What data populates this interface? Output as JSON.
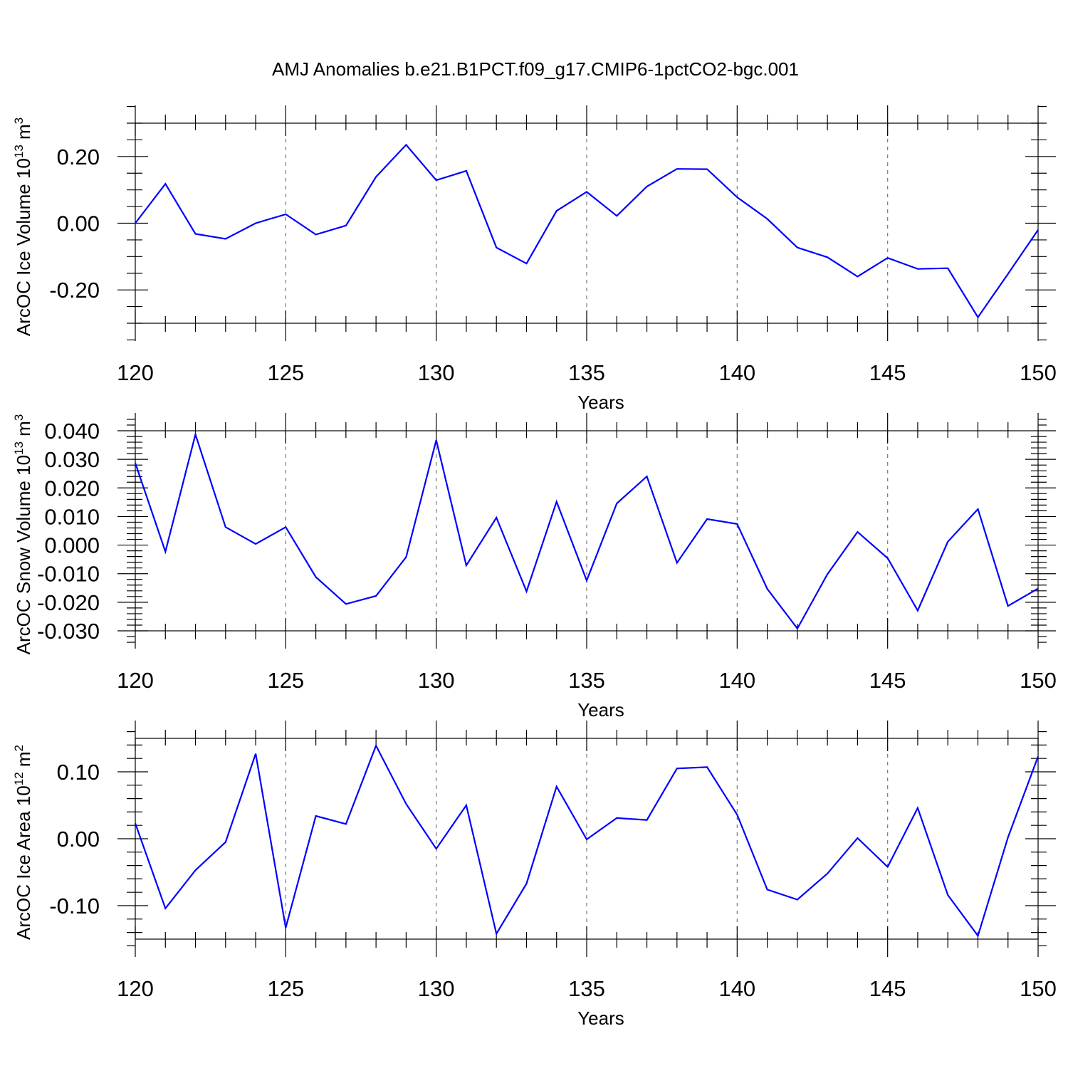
{
  "title": "AMJ Anomalies b.e21.B1PCT.f09_g17.CMIP6-1pctCO2-bgc.001",
  "colors": {
    "line": "#0000ff",
    "frame": "#000000",
    "grid": "#777777"
  },
  "chart_data": [
    {
      "type": "line",
      "ylabel": "ArcOC Ice Volume 10",
      "ylabel_exp": "13",
      "ylabel_unit": " m",
      "ylabel_unit_exp": "3",
      "xlabel": "Years",
      "xlim": [
        120,
        150
      ],
      "ylim": [
        -0.3,
        0.3
      ],
      "x_major_ticks": [
        120,
        125,
        130,
        135,
        140,
        145,
        150
      ],
      "x_tick_labels": [
        "120",
        "125",
        "130",
        "135",
        "140",
        "145",
        "150"
      ],
      "y_major_ticks": [
        -0.2,
        0.0,
        0.2
      ],
      "y_tick_labels": [
        "-0.20",
        "0.00",
        "0.20"
      ],
      "y_minor_step": 0.05,
      "grid_x": true,
      "x": [
        120,
        121,
        122,
        123,
        124,
        125,
        126,
        127,
        128,
        129,
        130,
        131,
        132,
        133,
        134,
        135,
        136,
        137,
        138,
        139,
        140,
        141,
        142,
        143,
        144,
        145,
        146,
        147,
        148,
        149,
        150
      ],
      "values": [
        0.0,
        0.118,
        -0.032,
        -0.047,
        0.0,
        0.027,
        -0.034,
        -0.007,
        0.139,
        0.235,
        0.129,
        0.157,
        -0.073,
        -0.121,
        0.037,
        0.094,
        0.022,
        0.11,
        0.163,
        0.162,
        0.078,
        0.013,
        -0.073,
        -0.102,
        -0.16,
        -0.104,
        -0.137,
        -0.135,
        -0.282,
        -0.152,
        -0.02
      ]
    },
    {
      "type": "line",
      "ylabel": "ArcOC Snow Volume 10",
      "ylabel_exp": "13",
      "ylabel_unit": " m",
      "ylabel_unit_exp": "3",
      "xlabel": "Years",
      "xlim": [
        120,
        150
      ],
      "ylim": [
        -0.03,
        0.04
      ],
      "x_major_ticks": [
        120,
        125,
        130,
        135,
        140,
        145,
        150
      ],
      "x_tick_labels": [
        "120",
        "125",
        "130",
        "135",
        "140",
        "145",
        "150"
      ],
      "y_major_ticks": [
        -0.03,
        -0.02,
        -0.01,
        0.0,
        0.01,
        0.02,
        0.03,
        0.04
      ],
      "y_tick_labels": [
        "-0.030",
        "-0.020",
        "-0.010",
        "0.000",
        "0.010",
        "0.020",
        "0.030",
        "0.040"
      ],
      "y_minor_step": 0.002,
      "grid_x": true,
      "x": [
        120,
        121,
        122,
        123,
        124,
        125,
        126,
        127,
        128,
        129,
        130,
        131,
        132,
        133,
        134,
        135,
        136,
        137,
        138,
        139,
        140,
        141,
        142,
        143,
        144,
        145,
        146,
        147,
        148,
        149,
        150
      ],
      "values": [
        0.0287,
        -0.0023,
        0.0387,
        0.0063,
        0.0004,
        0.0063,
        -0.0112,
        -0.0206,
        -0.0178,
        -0.0042,
        0.0367,
        -0.0071,
        0.0096,
        -0.0162,
        0.0152,
        -0.0124,
        0.0146,
        0.024,
        -0.0062,
        0.0091,
        0.0074,
        -0.0153,
        -0.0292,
        -0.0102,
        0.0046,
        -0.0046,
        -0.0229,
        0.0012,
        0.0126,
        -0.0213,
        -0.0152
      ]
    },
    {
      "type": "line",
      "ylabel": "ArcOC Ice Area 10",
      "ylabel_exp": "12",
      "ylabel_unit": " m",
      "ylabel_unit_exp": "2",
      "xlabel": "Years",
      "xlim": [
        120,
        150
      ],
      "ylim": [
        -0.15,
        0.15
      ],
      "x_major_ticks": [
        120,
        125,
        130,
        135,
        140,
        145,
        150
      ],
      "x_tick_labels": [
        "120",
        "125",
        "130",
        "135",
        "140",
        "145",
        "150"
      ],
      "y_major_ticks": [
        -0.1,
        0.0,
        0.1
      ],
      "y_tick_labels": [
        "-0.10",
        "0.00",
        "0.10"
      ],
      "y_minor_step": 0.02,
      "grid_x": true,
      "x": [
        120,
        121,
        122,
        123,
        124,
        125,
        126,
        127,
        128,
        129,
        130,
        131,
        132,
        133,
        134,
        135,
        136,
        137,
        138,
        139,
        140,
        141,
        142,
        143,
        144,
        145,
        146,
        147,
        148,
        149,
        150
      ],
      "values": [
        0.023,
        -0.104,
        -0.047,
        -0.005,
        0.127,
        -0.133,
        0.034,
        0.022,
        0.139,
        0.052,
        -0.015,
        0.05,
        -0.142,
        -0.067,
        0.078,
        -0.001,
        0.031,
        0.028,
        0.105,
        0.107,
        0.036,
        -0.076,
        -0.091,
        -0.052,
        0.001,
        -0.042,
        0.046,
        -0.084,
        -0.145,
        0.002,
        0.123
      ]
    }
  ]
}
